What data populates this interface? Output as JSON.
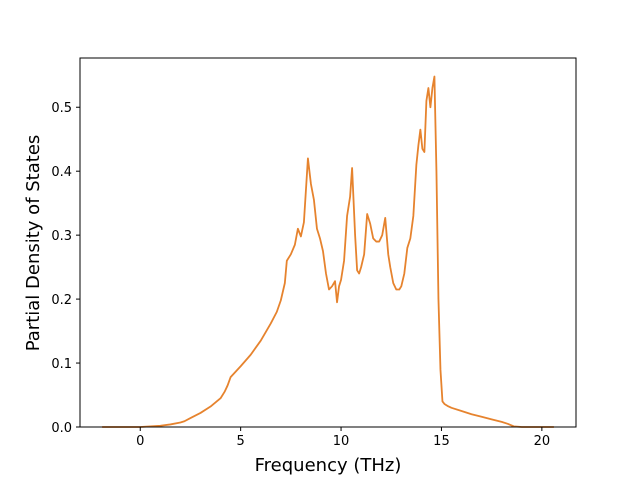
{
  "chart_data": {
    "type": "line",
    "xlabel": "Frequency (THz)",
    "ylabel": "Partial Density of States",
    "xlim": [
      -3.0,
      21.7
    ],
    "ylim": [
      0.0,
      0.577
    ],
    "xticks": [
      0,
      5,
      10,
      15,
      20
    ],
    "yticks": [
      0.0,
      0.1,
      0.2,
      0.3,
      0.4,
      0.5
    ],
    "grid": false,
    "colors": {
      "series": "#e6832e",
      "axes": "#000000",
      "background": "#ffffff"
    },
    "series": [
      {
        "x": [
          -1.9,
          -1.0,
          0.0,
          1.0,
          1.5,
          2.0,
          2.2,
          2.5,
          3.0,
          3.5,
          4.0,
          4.2,
          4.35,
          4.5,
          5.0,
          5.5,
          6.0,
          6.5,
          6.8,
          7.0,
          7.2,
          7.3,
          7.5,
          7.7,
          7.85,
          8.0,
          8.15,
          8.35,
          8.5,
          8.65,
          8.8,
          8.95,
          9.1,
          9.25,
          9.4,
          9.55,
          9.7,
          9.8,
          9.9,
          10.0,
          10.15,
          10.3,
          10.45,
          10.55,
          10.7,
          10.8,
          10.9,
          11.0,
          11.15,
          11.3,
          11.45,
          11.6,
          11.75,
          11.9,
          12.05,
          12.2,
          12.35,
          12.45,
          12.6,
          12.75,
          12.9,
          13.0,
          13.15,
          13.3,
          13.45,
          13.6,
          13.75,
          13.85,
          13.95,
          14.05,
          14.15,
          14.25,
          14.35,
          14.45,
          14.55,
          14.65,
          14.75,
          14.85,
          14.95,
          15.05,
          15.15,
          15.3,
          15.5,
          16.0,
          16.5,
          17.0,
          17.5,
          18.0,
          18.3,
          18.6,
          19.0,
          19.5,
          20.0,
          20.6
        ],
        "y": [
          0.0,
          0.0,
          0.0,
          0.002,
          0.004,
          0.007,
          0.009,
          0.014,
          0.022,
          0.032,
          0.045,
          0.055,
          0.065,
          0.078,
          0.095,
          0.113,
          0.135,
          0.162,
          0.18,
          0.198,
          0.225,
          0.26,
          0.27,
          0.285,
          0.31,
          0.298,
          0.32,
          0.42,
          0.38,
          0.355,
          0.31,
          0.295,
          0.275,
          0.24,
          0.215,
          0.22,
          0.228,
          0.195,
          0.22,
          0.23,
          0.26,
          0.33,
          0.36,
          0.405,
          0.3,
          0.245,
          0.24,
          0.25,
          0.27,
          0.333,
          0.318,
          0.295,
          0.29,
          0.29,
          0.3,
          0.327,
          0.27,
          0.25,
          0.225,
          0.215,
          0.215,
          0.22,
          0.24,
          0.28,
          0.295,
          0.33,
          0.41,
          0.44,
          0.465,
          0.435,
          0.43,
          0.51,
          0.53,
          0.5,
          0.53,
          0.548,
          0.4,
          0.2,
          0.09,
          0.04,
          0.036,
          0.033,
          0.03,
          0.025,
          0.02,
          0.016,
          0.012,
          0.008,
          0.005,
          0.001,
          0.0,
          0.0,
          0.0,
          0.0
        ]
      }
    ]
  }
}
